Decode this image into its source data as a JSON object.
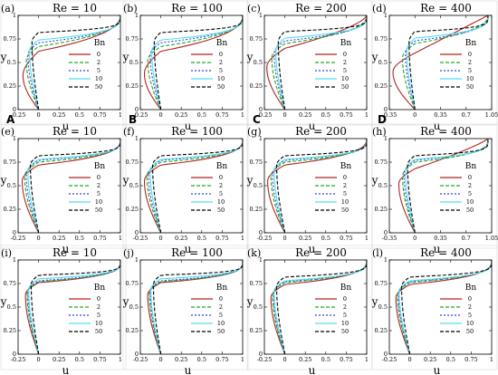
{
  "figure": {
    "legend_title": "Bn",
    "line_styles": {
      "0": {
        "color": "#b22222",
        "dash": ""
      },
      "2": {
        "color": "#22aa22",
        "dash": "4,2"
      },
      "5": {
        "color": "#3344dd",
        "dash": "2,2"
      },
      "10": {
        "color": "#55ddee",
        "dash": ""
      },
      "50": {
        "color": "#000000",
        "dash": "4,2"
      }
    }
  },
  "chart_data": [
    {
      "type": "line",
      "panel": "(a)",
      "title": "Re = 10",
      "corner_label": "A",
      "xlabel": "u",
      "ylabel": "y",
      "xlim": [
        -0.25,
        1
      ],
      "ylim": [
        0,
        1
      ],
      "xticks": [
        -0.25,
        0,
        0.25,
        0.5,
        0.75,
        1
      ],
      "xtick_labels": [
        "-0.25",
        "0",
        "0.25",
        "0.5",
        "0.75",
        "1"
      ],
      "yticks": [
        0,
        0.25,
        0.5,
        0.75,
        1
      ],
      "ytick_labels": [
        "0",
        "0.25",
        "0.5",
        "0.75",
        "1"
      ],
      "series": [
        {
          "name": "0",
          "u_min": -0.19,
          "y_min": 0.36,
          "y_cross": 0.62,
          "beta": 2.2
        },
        {
          "name": "2",
          "u_min": -0.15,
          "y_min": 0.52,
          "y_cross": 0.67,
          "beta": 2.5
        },
        {
          "name": "5",
          "u_min": -0.13,
          "y_min": 0.58,
          "y_cross": 0.71,
          "beta": 3.0
        },
        {
          "name": "10",
          "u_min": -0.11,
          "y_min": 0.62,
          "y_cross": 0.74,
          "beta": 3.5
        },
        {
          "name": "50",
          "u_min": -0.08,
          "y_min": 0.72,
          "y_cross": 0.82,
          "beta": 5.0
        }
      ]
    },
    {
      "type": "line",
      "panel": "(b)",
      "title": "Re = 100",
      "corner_label": "B",
      "xlabel": "u",
      "ylabel": "y",
      "xlim": [
        -0.25,
        1
      ],
      "ylim": [
        0,
        1
      ],
      "xticks": [
        -0.25,
        0,
        0.25,
        0.5,
        0.75,
        1
      ],
      "xtick_labels": [
        "-0.25",
        "0",
        "0.25",
        "0.5",
        "0.75",
        "1"
      ],
      "yticks": [
        0,
        0.25,
        0.5,
        0.75,
        1
      ],
      "ytick_labels": [
        "0",
        "0.25",
        "0.5",
        "0.75",
        "1"
      ],
      "series": [
        {
          "name": "0",
          "u_min": -0.2,
          "y_min": 0.38,
          "y_cross": 0.62,
          "beta": 2.3
        },
        {
          "name": "2",
          "u_min": -0.16,
          "y_min": 0.52,
          "y_cross": 0.67,
          "beta": 2.6
        },
        {
          "name": "5",
          "u_min": -0.13,
          "y_min": 0.58,
          "y_cross": 0.71,
          "beta": 3.0
        },
        {
          "name": "10",
          "u_min": -0.11,
          "y_min": 0.62,
          "y_cross": 0.74,
          "beta": 3.6
        },
        {
          "name": "50",
          "u_min": -0.08,
          "y_min": 0.72,
          "y_cross": 0.82,
          "beta": 5.0
        }
      ]
    },
    {
      "type": "line",
      "panel": "(c)",
      "title": "Re = 200",
      "corner_label": "C",
      "xlabel": "u",
      "ylabel": "y",
      "xlim": [
        -0.25,
        1
      ],
      "ylim": [
        0,
        1
      ],
      "xticks": [
        -0.25,
        0,
        0.25,
        0.5,
        0.75,
        1
      ],
      "xtick_labels": [
        "-0.25",
        "0",
        "0.25",
        "0.5",
        "0.75",
        "1"
      ],
      "yticks": [
        0,
        0.25,
        0.5,
        0.75,
        1
      ],
      "ytick_labels": [
        "0",
        "0.25",
        "0.5",
        "0.75",
        "1"
      ],
      "series": [
        {
          "name": "0",
          "u_min": -0.22,
          "y_min": 0.45,
          "y_cross": 0.65,
          "beta": 1.5
        },
        {
          "name": "2",
          "u_min": -0.16,
          "y_min": 0.55,
          "y_cross": 0.7,
          "beta": 2.4
        },
        {
          "name": "5",
          "u_min": -0.13,
          "y_min": 0.6,
          "y_cross": 0.73,
          "beta": 3.0
        },
        {
          "name": "10",
          "u_min": -0.11,
          "y_min": 0.63,
          "y_cross": 0.76,
          "beta": 3.6
        },
        {
          "name": "50",
          "u_min": -0.08,
          "y_min": 0.72,
          "y_cross": 0.83,
          "beta": 5.0
        }
      ]
    },
    {
      "type": "line",
      "panel": "(d)",
      "title": "Re = 400",
      "corner_label": "D",
      "xlabel": "u",
      "ylabel": "y",
      "xlim": [
        -0.35,
        1.05
      ],
      "ylim": [
        0,
        1
      ],
      "xticks": [
        -0.35,
        0,
        0.35,
        0.7,
        1.05
      ],
      "xtick_labels": [
        "-0.35",
        "0",
        "0.35",
        "0.7",
        "1.05"
      ],
      "yticks": [
        0,
        0.25,
        0.5,
        0.75,
        1
      ],
      "ytick_labels": [
        "0",
        "0.25",
        "0.5",
        "0.75",
        "1"
      ],
      "series": [
        {
          "name": "0",
          "u_min": -0.3,
          "y_min": 0.4,
          "y_cross": 0.6,
          "beta": 1.0
        },
        {
          "name": "2",
          "u_min": -0.17,
          "y_min": 0.55,
          "y_cross": 0.7,
          "beta": 2.2
        },
        {
          "name": "5",
          "u_min": -0.13,
          "y_min": 0.6,
          "y_cross": 0.73,
          "beta": 2.9
        },
        {
          "name": "10",
          "u_min": -0.11,
          "y_min": 0.63,
          "y_cross": 0.76,
          "beta": 3.5
        },
        {
          "name": "50",
          "u_min": -0.08,
          "y_min": 0.72,
          "y_cross": 0.83,
          "beta": 5.0
        }
      ]
    },
    {
      "type": "line",
      "panel": "(e)",
      "title": "Re = 10",
      "corner_label": "",
      "xlabel": "u",
      "ylabel": "y",
      "xlim": [
        -0.25,
        1
      ],
      "ylim": [
        0,
        1
      ],
      "xticks": [
        -0.25,
        0,
        0.25,
        0.5,
        0.75,
        1
      ],
      "xtick_labels": [
        "-0.25",
        "0",
        "0.25",
        "0.5",
        "0.75",
        "1"
      ],
      "yticks": [
        0,
        0.25,
        0.5,
        0.75,
        1
      ],
      "ytick_labels": [
        "0",
        "0.25",
        "0.5",
        "0.75",
        "1"
      ],
      "series": [
        {
          "name": "0",
          "u_min": -0.2,
          "y_min": 0.55,
          "y_cross": 0.72,
          "beta": 3.0
        },
        {
          "name": "2",
          "u_min": -0.17,
          "y_min": 0.6,
          "y_cross": 0.75,
          "beta": 3.5
        },
        {
          "name": "5",
          "u_min": -0.15,
          "y_min": 0.63,
          "y_cross": 0.77,
          "beta": 3.8
        },
        {
          "name": "10",
          "u_min": -0.13,
          "y_min": 0.66,
          "y_cross": 0.78,
          "beta": 4.2
        },
        {
          "name": "50",
          "u_min": -0.1,
          "y_min": 0.72,
          "y_cross": 0.82,
          "beta": 5.5
        }
      ]
    },
    {
      "type": "line",
      "panel": "(f)",
      "title": "Re = 100",
      "corner_label": "",
      "xlabel": "u",
      "ylabel": "y",
      "xlim": [
        -0.25,
        1
      ],
      "ylim": [
        0,
        1
      ],
      "xticks": [
        -0.25,
        0,
        0.25,
        0.5,
        0.75,
        1
      ],
      "xtick_labels": [
        "-0.25",
        "0",
        "0.25",
        "0.5",
        "0.75",
        "1"
      ],
      "yticks": [
        0,
        0.25,
        0.5,
        0.75,
        1
      ],
      "ytick_labels": [
        "0",
        "0.25",
        "0.5",
        "0.75",
        "1"
      ],
      "series": [
        {
          "name": "0",
          "u_min": -0.2,
          "y_min": 0.55,
          "y_cross": 0.72,
          "beta": 3.0
        },
        {
          "name": "2",
          "u_min": -0.17,
          "y_min": 0.6,
          "y_cross": 0.75,
          "beta": 3.5
        },
        {
          "name": "5",
          "u_min": -0.15,
          "y_min": 0.63,
          "y_cross": 0.77,
          "beta": 3.8
        },
        {
          "name": "10",
          "u_min": -0.13,
          "y_min": 0.66,
          "y_cross": 0.78,
          "beta": 4.2
        },
        {
          "name": "50",
          "u_min": -0.1,
          "y_min": 0.72,
          "y_cross": 0.82,
          "beta": 5.5
        }
      ]
    },
    {
      "type": "line",
      "panel": "(g)",
      "title": "Re = 200",
      "corner_label": "",
      "xlabel": "u",
      "ylabel": "y",
      "xlim": [
        -0.25,
        1
      ],
      "ylim": [
        0,
        1
      ],
      "xticks": [
        -0.25,
        0,
        0.25,
        0.5,
        0.75,
        1
      ],
      "xtick_labels": [
        "-0.25",
        "0",
        "0.25",
        "0.5",
        "0.75",
        "1"
      ],
      "yticks": [
        0,
        0.25,
        0.5,
        0.75,
        1
      ],
      "ytick_labels": [
        "0",
        "0.25",
        "0.5",
        "0.75",
        "1"
      ],
      "series": [
        {
          "name": "0",
          "u_min": -0.21,
          "y_min": 0.55,
          "y_cross": 0.72,
          "beta": 2.6
        },
        {
          "name": "2",
          "u_min": -0.17,
          "y_min": 0.6,
          "y_cross": 0.75,
          "beta": 3.3
        },
        {
          "name": "5",
          "u_min": -0.15,
          "y_min": 0.63,
          "y_cross": 0.77,
          "beta": 3.7
        },
        {
          "name": "10",
          "u_min": -0.13,
          "y_min": 0.66,
          "y_cross": 0.78,
          "beta": 4.1
        },
        {
          "name": "50",
          "u_min": -0.1,
          "y_min": 0.72,
          "y_cross": 0.82,
          "beta": 5.5
        }
      ]
    },
    {
      "type": "line",
      "panel": "(h)",
      "title": "Re = 400",
      "corner_label": "",
      "xlabel": "u",
      "ylabel": "y",
      "xlim": [
        -0.35,
        1.05
      ],
      "ylim": [
        0,
        1
      ],
      "xticks": [
        -0.35,
        0,
        0.35,
        0.7,
        1.05
      ],
      "xtick_labels": [
        "-0.35",
        "0",
        "0.35",
        "0.7",
        "1.05"
      ],
      "yticks": [
        0,
        0.25,
        0.5,
        0.75,
        1
      ],
      "ytick_labels": [
        "0",
        "0.25",
        "0.5",
        "0.75",
        "1"
      ],
      "series": [
        {
          "name": "0",
          "u_min": -0.22,
          "y_min": 0.52,
          "y_cross": 0.68,
          "beta": 1.2
        },
        {
          "name": "2",
          "u_min": -0.17,
          "y_min": 0.6,
          "y_cross": 0.75,
          "beta": 3.0
        },
        {
          "name": "5",
          "u_min": -0.15,
          "y_min": 0.63,
          "y_cross": 0.77,
          "beta": 3.5
        },
        {
          "name": "10",
          "u_min": -0.13,
          "y_min": 0.66,
          "y_cross": 0.78,
          "beta": 4.0
        },
        {
          "name": "50",
          "u_min": -0.1,
          "y_min": 0.72,
          "y_cross": 0.82,
          "beta": 5.5
        }
      ]
    },
    {
      "type": "line",
      "panel": "(i)",
      "title": "Re = 10",
      "corner_label": "",
      "xlabel": "u",
      "ylabel": "y",
      "xlim": [
        -0.25,
        1
      ],
      "ylim": [
        0,
        1
      ],
      "xticks": [
        -0.25,
        0,
        0.25,
        0.5,
        0.75,
        1
      ],
      "xtick_labels": [
        "-0.25",
        "0",
        "0.25",
        "0.5",
        "0.75",
        "1"
      ],
      "yticks": [
        0,
        0.25,
        0.5,
        0.75,
        1
      ],
      "ytick_labels": [
        "0",
        "0.25",
        "0.5",
        "0.75",
        "1"
      ],
      "series": [
        {
          "name": "0",
          "u_min": -0.16,
          "y_min": 0.63,
          "y_cross": 0.76,
          "beta": 3.5
        },
        {
          "name": "2",
          "u_min": -0.14,
          "y_min": 0.65,
          "y_cross": 0.77,
          "beta": 3.8
        },
        {
          "name": "5",
          "u_min": -0.13,
          "y_min": 0.67,
          "y_cross": 0.78,
          "beta": 4.1
        },
        {
          "name": "10",
          "u_min": -0.12,
          "y_min": 0.69,
          "y_cross": 0.8,
          "beta": 4.5
        },
        {
          "name": "50",
          "u_min": -0.09,
          "y_min": 0.74,
          "y_cross": 0.84,
          "beta": 6.0
        }
      ]
    },
    {
      "type": "line",
      "panel": "(j)",
      "title": "Re = 100",
      "corner_label": "",
      "xlabel": "u",
      "ylabel": "y",
      "xlim": [
        -0.25,
        1
      ],
      "ylim": [
        0,
        1
      ],
      "xticks": [
        -0.25,
        0,
        0.25,
        0.5,
        0.75,
        1
      ],
      "xtick_labels": [
        "-0.25",
        "0",
        "0.25",
        "0.5",
        "0.75",
        "1"
      ],
      "yticks": [
        0,
        0.25,
        0.5,
        0.75,
        1
      ],
      "ytick_labels": [
        "0",
        "0.25",
        "0.5",
        "0.75",
        "1"
      ],
      "series": [
        {
          "name": "0",
          "u_min": -0.16,
          "y_min": 0.63,
          "y_cross": 0.76,
          "beta": 3.5
        },
        {
          "name": "2",
          "u_min": -0.14,
          "y_min": 0.65,
          "y_cross": 0.77,
          "beta": 3.8
        },
        {
          "name": "5",
          "u_min": -0.13,
          "y_min": 0.67,
          "y_cross": 0.78,
          "beta": 4.1
        },
        {
          "name": "10",
          "u_min": -0.12,
          "y_min": 0.69,
          "y_cross": 0.8,
          "beta": 4.5
        },
        {
          "name": "50",
          "u_min": -0.09,
          "y_min": 0.74,
          "y_cross": 0.84,
          "beta": 6.0
        }
      ]
    },
    {
      "type": "line",
      "panel": "(k)",
      "title": "Re = 200",
      "corner_label": "",
      "xlabel": "u",
      "ylabel": "y",
      "xlim": [
        -0.25,
        1
      ],
      "ylim": [
        0,
        1
      ],
      "xticks": [
        -0.25,
        0,
        0.25,
        0.5,
        0.75,
        1
      ],
      "xtick_labels": [
        "-0.25",
        "0",
        "0.25",
        "0.5",
        "0.75",
        "1"
      ],
      "yticks": [
        0,
        0.25,
        0.5,
        0.75,
        1
      ],
      "ytick_labels": [
        "0",
        "0.25",
        "0.5",
        "0.75",
        "1"
      ],
      "series": [
        {
          "name": "0",
          "u_min": -0.17,
          "y_min": 0.6,
          "y_cross": 0.74,
          "beta": 3.0
        },
        {
          "name": "2",
          "u_min": -0.15,
          "y_min": 0.63,
          "y_cross": 0.76,
          "beta": 3.3
        },
        {
          "name": "5",
          "u_min": -0.14,
          "y_min": 0.65,
          "y_cross": 0.77,
          "beta": 3.6
        },
        {
          "name": "10",
          "u_min": -0.13,
          "y_min": 0.67,
          "y_cross": 0.78,
          "beta": 4.0
        },
        {
          "name": "50",
          "u_min": -0.1,
          "y_min": 0.72,
          "y_cross": 0.82,
          "beta": 5.0
        }
      ]
    },
    {
      "type": "line",
      "panel": "(l)",
      "title": "Re = 400",
      "corner_label": "",
      "xlabel": "u",
      "ylabel": "y",
      "xlim": [
        -0.25,
        1
      ],
      "ylim": [
        0,
        1
      ],
      "xticks": [
        -0.25,
        0,
        0.25,
        0.5,
        0.75,
        1
      ],
      "xtick_labels": [
        "-0.25",
        "0",
        "0.25",
        "0.5",
        "0.75",
        "1"
      ],
      "yticks": [
        0,
        0.25,
        0.5,
        0.75,
        1
      ],
      "ytick_labels": [
        "0",
        "0.25",
        "0.5",
        "0.75",
        "1"
      ],
      "series": [
        {
          "name": "0",
          "u_min": -0.17,
          "y_min": 0.6,
          "y_cross": 0.74,
          "beta": 3.0
        },
        {
          "name": "2",
          "u_min": -0.15,
          "y_min": 0.63,
          "y_cross": 0.76,
          "beta": 3.3
        },
        {
          "name": "5",
          "u_min": -0.14,
          "y_min": 0.65,
          "y_cross": 0.77,
          "beta": 3.6
        },
        {
          "name": "10",
          "u_min": -0.13,
          "y_min": 0.67,
          "y_cross": 0.78,
          "beta": 4.0
        },
        {
          "name": "50",
          "u_min": -0.1,
          "y_min": 0.72,
          "y_cross": 0.82,
          "beta": 5.0
        }
      ]
    }
  ]
}
